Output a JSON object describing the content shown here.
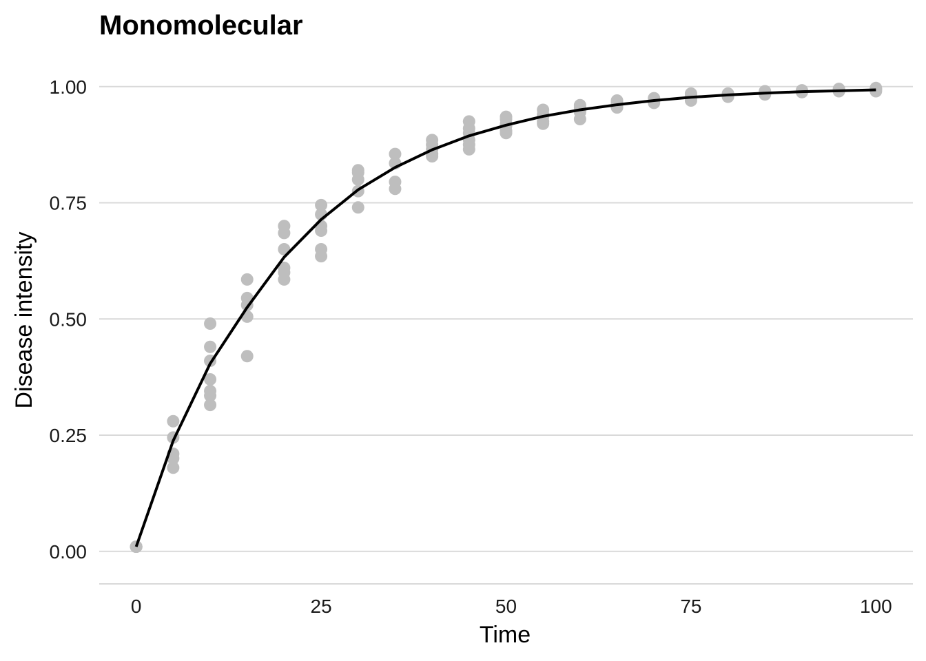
{
  "chart_data": {
    "type": "scatter",
    "title": "Monomolecular",
    "xlabel": "Time",
    "ylabel": "Disease intensity",
    "xlim": [
      -5,
      105
    ],
    "ylim": [
      -0.07,
      1.05
    ],
    "x_ticks": [
      0,
      25,
      50,
      75,
      100
    ],
    "x_tick_labels": [
      "0",
      "25",
      "50",
      "75",
      "100"
    ],
    "y_ticks": [
      0,
      0.25,
      0.5,
      0.75,
      1.0
    ],
    "y_tick_labels": [
      "0.00",
      "0.25",
      "0.50",
      "0.75",
      "1.00"
    ],
    "grid": "horizontal-major",
    "legend": "none",
    "series": [
      {
        "kind": "points",
        "color": "#bebebe",
        "points": [
          [
            0,
            0.01
          ],
          [
            0,
            0.01
          ],
          [
            0,
            0.01
          ],
          [
            0,
            0.01
          ],
          [
            0,
            0.01
          ],
          [
            5,
            0.28
          ],
          [
            5,
            0.245
          ],
          [
            5,
            0.21
          ],
          [
            5,
            0.2
          ],
          [
            5,
            0.18
          ],
          [
            10,
            0.49
          ],
          [
            10,
            0.44
          ],
          [
            10,
            0.41
          ],
          [
            10,
            0.37
          ],
          [
            10,
            0.345
          ],
          [
            10,
            0.335
          ],
          [
            10,
            0.315
          ],
          [
            15,
            0.585
          ],
          [
            15,
            0.545
          ],
          [
            15,
            0.53
          ],
          [
            15,
            0.505
          ],
          [
            15,
            0.42
          ],
          [
            20,
            0.7
          ],
          [
            20,
            0.685
          ],
          [
            20,
            0.65
          ],
          [
            20,
            0.61
          ],
          [
            20,
            0.6
          ],
          [
            20,
            0.585
          ],
          [
            25,
            0.745
          ],
          [
            25,
            0.725
          ],
          [
            25,
            0.7
          ],
          [
            25,
            0.69
          ],
          [
            25,
            0.65
          ],
          [
            25,
            0.635
          ],
          [
            30,
            0.82
          ],
          [
            30,
            0.815
          ],
          [
            30,
            0.8
          ],
          [
            30,
            0.775
          ],
          [
            30,
            0.74
          ],
          [
            35,
            0.855
          ],
          [
            35,
            0.835
          ],
          [
            35,
            0.795
          ],
          [
            35,
            0.78
          ],
          [
            40,
            0.885
          ],
          [
            40,
            0.875
          ],
          [
            40,
            0.865
          ],
          [
            40,
            0.855
          ],
          [
            40,
            0.85
          ],
          [
            45,
            0.925
          ],
          [
            45,
            0.91
          ],
          [
            45,
            0.9
          ],
          [
            45,
            0.885
          ],
          [
            45,
            0.875
          ],
          [
            45,
            0.865
          ],
          [
            50,
            0.935
          ],
          [
            50,
            0.93
          ],
          [
            50,
            0.92
          ],
          [
            50,
            0.915
          ],
          [
            50,
            0.905
          ],
          [
            50,
            0.9
          ],
          [
            55,
            0.95
          ],
          [
            55,
            0.94
          ],
          [
            55,
            0.935
          ],
          [
            55,
            0.925
          ],
          [
            55,
            0.92
          ],
          [
            60,
            0.96
          ],
          [
            60,
            0.955
          ],
          [
            60,
            0.945
          ],
          [
            60,
            0.93
          ],
          [
            65,
            0.97
          ],
          [
            65,
            0.965
          ],
          [
            65,
            0.96
          ],
          [
            65,
            0.955
          ],
          [
            70,
            0.975
          ],
          [
            70,
            0.97
          ],
          [
            70,
            0.965
          ],
          [
            75,
            0.985
          ],
          [
            75,
            0.98
          ],
          [
            75,
            0.975
          ],
          [
            75,
            0.97
          ],
          [
            80,
            0.985
          ],
          [
            80,
            0.98
          ],
          [
            80,
            0.978
          ],
          [
            85,
            0.99
          ],
          [
            85,
            0.988
          ],
          [
            85,
            0.985
          ],
          [
            85,
            0.983
          ],
          [
            90,
            0.992
          ],
          [
            90,
            0.99
          ],
          [
            90,
            0.988
          ],
          [
            95,
            0.995
          ],
          [
            95,
            0.992
          ],
          [
            95,
            0.99
          ],
          [
            100,
            0.997
          ],
          [
            100,
            0.995
          ],
          [
            100,
            0.993
          ],
          [
            100,
            0.99
          ]
        ]
      },
      {
        "kind": "line",
        "color": "#000000",
        "x": [
          0,
          5,
          10,
          15,
          20,
          25,
          30,
          35,
          40,
          45,
          50,
          55,
          60,
          65,
          70,
          75,
          80,
          85,
          90,
          95,
          100
        ],
        "y": [
          0.01,
          0.238,
          0.404,
          0.525,
          0.633,
          0.714,
          0.778,
          0.826,
          0.864,
          0.894,
          0.917,
          0.936,
          0.95,
          0.961,
          0.97,
          0.977,
          0.982,
          0.986,
          0.989,
          0.991,
          0.993
        ]
      }
    ]
  }
}
